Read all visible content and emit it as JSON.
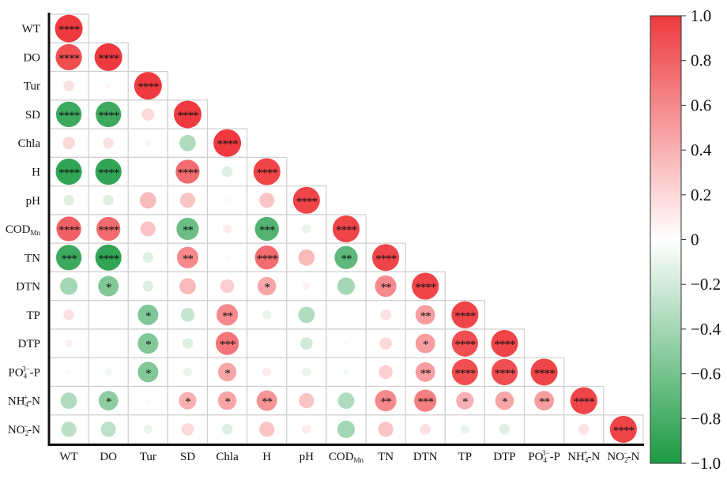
{
  "chart_data": {
    "type": "heatmap",
    "subtype": "lower-triangle correlation matrix (circle size and color = r)",
    "variables": [
      {
        "base": "WT"
      },
      {
        "base": "DO"
      },
      {
        "base": "Tur"
      },
      {
        "base": "SD"
      },
      {
        "base": "Chla"
      },
      {
        "base": "H"
      },
      {
        "base": "pH"
      },
      {
        "base": "COD",
        "sub": "Mn"
      },
      {
        "base": "TN"
      },
      {
        "base": "DTN"
      },
      {
        "base": "TP"
      },
      {
        "base": "DTP"
      },
      {
        "base": "PO",
        "sub": "4",
        "sup": "3−",
        "tail": "-P"
      },
      {
        "base": "NH",
        "sub": "4",
        "sup": "+",
        "tail": "-N"
      },
      {
        "base": "NO",
        "sub": "2",
        "sup": "−",
        "tail": "-N"
      }
    ],
    "r": [
      [
        1
      ],
      [
        0.9,
        1
      ],
      [
        0.15,
        0.05,
        1
      ],
      [
        -0.85,
        -0.85,
        0.2,
        1
      ],
      [
        0.2,
        0.15,
        -0.05,
        -0.35,
        1
      ],
      [
        -0.9,
        -0.9,
        0,
        0.75,
        -0.15,
        0.95
      ],
      [
        -0.15,
        -0.15,
        0.35,
        0.3,
        -0.03,
        0.3,
        0.95
      ],
      [
        0.8,
        0.75,
        0.3,
        -0.65,
        0.1,
        -0.75,
        -0.1,
        0.95
      ],
      [
        -0.85,
        -0.9,
        -0.15,
        0.6,
        -0.03,
        0.75,
        0.35,
        -0.7,
        0.95
      ],
      [
        -0.4,
        -0.55,
        -0.15,
        0.35,
        0.25,
        0.45,
        0.07,
        -0.4,
        0.6,
        0.95
      ],
      [
        0.15,
        0.02,
        -0.55,
        -0.25,
        0.6,
        -0.1,
        -0.35,
        0,
        0.15,
        0.5,
        0.95
      ],
      [
        0.08,
        0.01,
        -0.55,
        -0.15,
        0.7,
        0,
        -0.2,
        -0.03,
        0.2,
        0.5,
        0.9,
        0.95
      ],
      [
        -0.03,
        -0.07,
        -0.55,
        -0.1,
        0.45,
        0.1,
        -0.1,
        -0.05,
        0.25,
        0.5,
        0.9,
        0.9,
        0.95
      ],
      [
        -0.35,
        -0.5,
        0.03,
        0.4,
        0.45,
        0.55,
        0.3,
        -0.35,
        0.6,
        0.65,
        0.4,
        0.45,
        0.5,
        0.95
      ],
      [
        -0.3,
        -0.3,
        -0.1,
        0.2,
        -0.15,
        0.3,
        0.1,
        -0.4,
        0.3,
        0.15,
        -0.1,
        -0.15,
        0.02,
        0.15,
        0.95
      ]
    ],
    "significance": [
      [
        "****"
      ],
      [
        "****",
        "****"
      ],
      [
        "",
        "",
        "****"
      ],
      [
        "****",
        "****",
        "",
        "****"
      ],
      [
        "",
        "",
        "",
        "",
        "****"
      ],
      [
        "****",
        "****",
        "",
        "****",
        "",
        "****"
      ],
      [
        "",
        "",
        "",
        "",
        "",
        "",
        "****"
      ],
      [
        "****",
        "****",
        "",
        "**",
        "",
        "***",
        "",
        "****"
      ],
      [
        "***",
        "****",
        "",
        "**",
        "",
        "****",
        "",
        "**",
        "****"
      ],
      [
        "",
        "*",
        "",
        "",
        "",
        "*",
        "",
        "",
        "**",
        "****"
      ],
      [
        "",
        "",
        "*",
        "",
        "**",
        "",
        "",
        "",
        "",
        "**",
        "****"
      ],
      [
        "",
        "",
        "*",
        "",
        "***",
        "",
        "",
        "",
        "",
        "*",
        "****",
        "****"
      ],
      [
        "",
        "",
        "*",
        "",
        "*",
        "",
        "",
        "",
        "",
        "**",
        "****",
        "****",
        "****"
      ],
      [
        "",
        "*",
        "",
        "*",
        "*",
        "**",
        "",
        "",
        "**",
        "***",
        "*",
        "*",
        "**",
        "****"
      ],
      [
        "",
        "",
        "",
        "",
        "",
        "",
        "",
        "",
        "",
        "",
        "",
        "",
        "",
        "",
        "****"
      ]
    ],
    "colorbar": {
      "range": [
        -1.0,
        1.0
      ],
      "ticks": [
        "1.0",
        "0.8",
        "0.6",
        "0.4",
        "0.2",
        "0",
        "−0.2",
        "−0.4",
        "−0.6",
        "−0.8",
        "−1.0"
      ],
      "tick_values": [
        1.0,
        0.8,
        0.6,
        0.4,
        0.2,
        0,
        -0.2,
        -0.4,
        -0.6,
        -0.8,
        -1.0
      ],
      "pos_color": "#ee3a3e",
      "neg_color": "#1b9a43",
      "mid_color": "#ffffff"
    }
  }
}
